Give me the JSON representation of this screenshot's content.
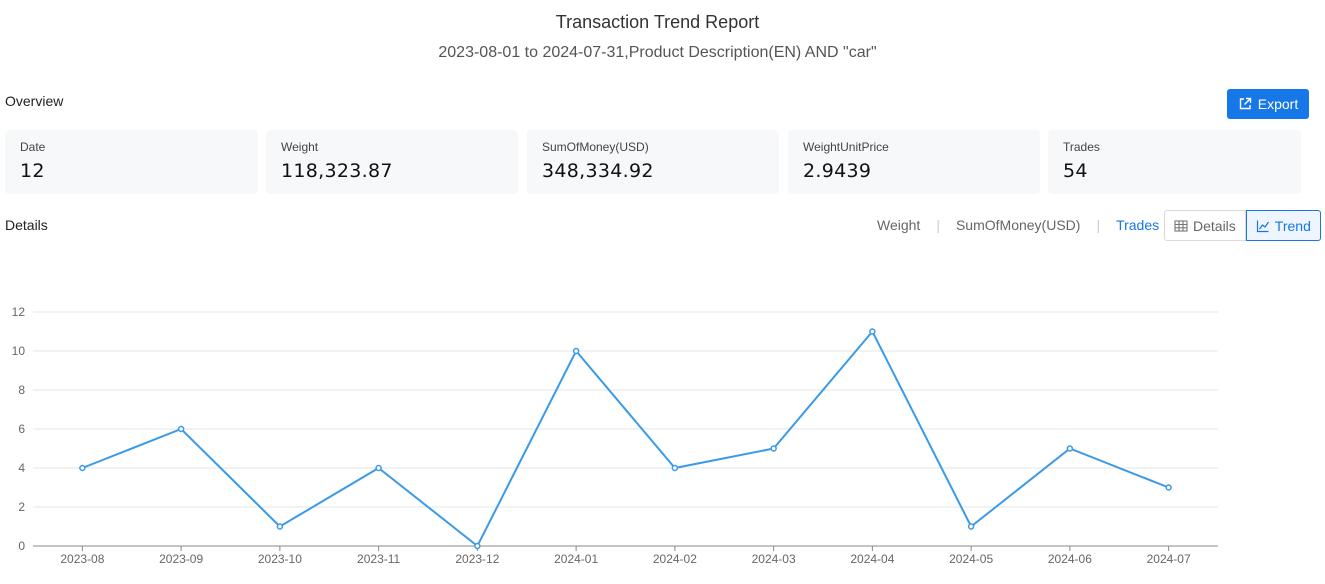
{
  "header": {
    "title": "Transaction Trend Report",
    "subtitle": "2023-08-01 to 2024-07-31,Product Description(EN) AND \"car\""
  },
  "overview": {
    "label": "Overview",
    "export_label": "Export",
    "cards": [
      {
        "label": "Date",
        "value": "12"
      },
      {
        "label": "Weight",
        "value": "118,323.87"
      },
      {
        "label": "SumOfMoney(USD)",
        "value": "348,334.92"
      },
      {
        "label": "WeightUnitPrice",
        "value": "2.9439"
      },
      {
        "label": "Trades",
        "value": "54"
      }
    ]
  },
  "details": {
    "label": "Details",
    "metric_tabs": [
      "Weight",
      "SumOfMoney(USD)",
      "Trades"
    ],
    "active_metric": "Trades",
    "view_toggle": {
      "details_label": "Details",
      "trend_label": "Trend",
      "active": "Trend"
    }
  },
  "colors": {
    "accent": "#1677e8",
    "line": "#3a9ae8"
  },
  "chart_data": {
    "type": "line",
    "categories": [
      "2023-08",
      "2023-09",
      "2023-10",
      "2023-11",
      "2023-12",
      "2024-01",
      "2024-02",
      "2024-03",
      "2024-04",
      "2024-05",
      "2024-06",
      "2024-07"
    ],
    "series": [
      {
        "values": [
          4,
          6,
          1,
          4,
          0,
          10,
          4,
          5,
          11,
          1,
          5,
          3
        ]
      }
    ],
    "yticks": [
      0,
      2,
      4,
      6,
      8,
      10,
      12
    ],
    "ylim": [
      0,
      12
    ],
    "grid": true,
    "title": "",
    "xlabel": "",
    "ylabel": ""
  }
}
